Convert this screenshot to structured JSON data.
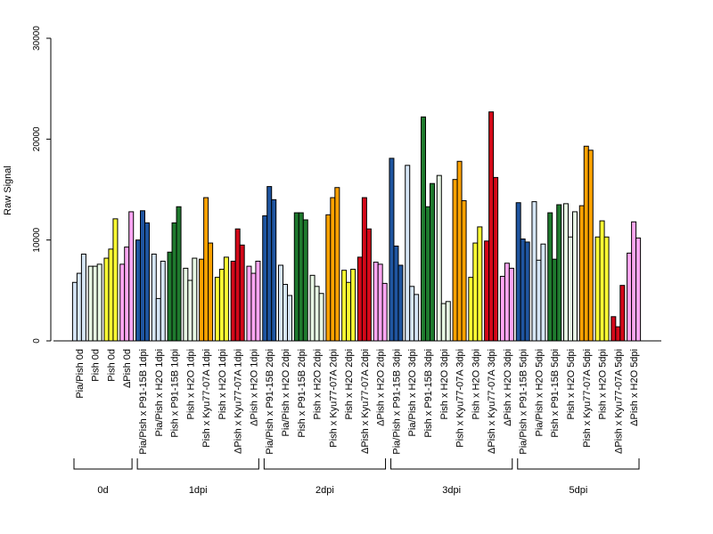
{
  "chart_data": {
    "type": "bar",
    "ylabel": "Raw Signal",
    "xlabel": "",
    "ylim": [
      0,
      30000
    ],
    "yticks": [
      0,
      10000,
      20000,
      30000
    ],
    "grid": false,
    "legend": "none",
    "group_names": [
      "0d",
      "1dpi",
      "2dpi",
      "3dpi",
      "5dpi"
    ],
    "categories": [
      {
        "label": "Pia/Pish 0d",
        "group": 0,
        "color": "#d6e6f6",
        "values": [
          5800,
          6700,
          8600
        ]
      },
      {
        "label": "Pish 0d",
        "group": 0,
        "color": "#e8f8e4",
        "values": [
          7400,
          7400,
          7600
        ]
      },
      {
        "label": "Pish 0d",
        "group": 0,
        "color": "#ffff33",
        "values": [
          8200,
          9100,
          12100
        ]
      },
      {
        "label": "ΔPish 0d",
        "group": 0,
        "color": "#ffa6f3",
        "values": [
          7600,
          9300,
          12800
        ]
      },
      {
        "label": "Pia/Pish x P91-15B 1dpi",
        "group": 1,
        "color": "#1f55a0",
        "values": [
          10000,
          12900,
          11700
        ]
      },
      {
        "label": "Pia/Pish x H2O 1dpi",
        "group": 1,
        "color": "#d6e6f6",
        "values": [
          8600,
          4200,
          7900
        ]
      },
      {
        "label": "Pish x P91-15B 1dpi",
        "group": 1,
        "color": "#1f7a2e",
        "values": [
          8800,
          11700,
          13300
        ]
      },
      {
        "label": "Pish x H2O 1dpi",
        "group": 1,
        "color": "#e8f8e4",
        "values": [
          7200,
          6000,
          8200
        ]
      },
      {
        "label": "Pish x Kyu77-07A 1dpi",
        "group": 1,
        "color": "#ffa200",
        "values": [
          8100,
          14200,
          9700
        ]
      },
      {
        "label": "Pish x H2O 1dpi",
        "group": 1,
        "color": "#ffff33",
        "values": [
          6300,
          7100,
          8300
        ]
      },
      {
        "label": "ΔPish x Kyu77-07A 1dpi",
        "group": 1,
        "color": "#d40819",
        "values": [
          7900,
          11100,
          9500
        ]
      },
      {
        "label": "ΔPish x H2O 1dpi",
        "group": 1,
        "color": "#ffa6f3",
        "values": [
          7400,
          6700,
          7900
        ]
      },
      {
        "label": "Pia/Pish x P91-15B 2dpi",
        "group": 2,
        "color": "#1f55a0",
        "values": [
          12400,
          15300,
          14000
        ]
      },
      {
        "label": "Pia/Pish x H2O 2dpi",
        "group": 2,
        "color": "#d6e6f6",
        "values": [
          7500,
          5600,
          4500
        ]
      },
      {
        "label": "Pish x P91-15B 2dpi",
        "group": 2,
        "color": "#1f7a2e",
        "values": [
          12700,
          12700,
          12000
        ]
      },
      {
        "label": "Pish x H2O 2dpi",
        "group": 2,
        "color": "#e8f8e4",
        "values": [
          6500,
          5400,
          4700
        ]
      },
      {
        "label": "Pish x Kyu77-07A 2dpi",
        "group": 2,
        "color": "#ffa200",
        "values": [
          12500,
          14200,
          15200
        ]
      },
      {
        "label": "Pish x H2O 2dpi",
        "group": 2,
        "color": "#ffff33",
        "values": [
          7000,
          5800,
          7100
        ]
      },
      {
        "label": "ΔPish x Kyu77-07A 2dpi",
        "group": 2,
        "color": "#d40819",
        "values": [
          8300,
          14200,
          11100
        ]
      },
      {
        "label": "ΔPish x H2O 2dpi",
        "group": 2,
        "color": "#ffa6f3",
        "values": [
          7800,
          7600,
          5700
        ]
      },
      {
        "label": "Pia/Pish x P91-15B 3dpi",
        "group": 3,
        "color": "#1f55a0",
        "values": [
          18100,
          9400,
          7500
        ]
      },
      {
        "label": "Pia/Pish x H2O 3dpi",
        "group": 3,
        "color": "#d6e6f6",
        "values": [
          17400,
          5400,
          4600
        ]
      },
      {
        "label": "Pish x P91-15B 3dpi",
        "group": 3,
        "color": "#1f7a2e",
        "values": [
          22200,
          13300,
          15600
        ]
      },
      {
        "label": "Pish x H2O 3dpi",
        "group": 3,
        "color": "#e8f8e4",
        "values": [
          16400,
          3700,
          3900
        ]
      },
      {
        "label": "Pish x Kyu77-07A 3dpi",
        "group": 3,
        "color": "#ffa200",
        "values": [
          16000,
          17800,
          13900
        ]
      },
      {
        "label": "Pish x H2O 3dpi",
        "group": 3,
        "color": "#ffff33",
        "values": [
          6300,
          9700,
          11300
        ]
      },
      {
        "label": "ΔPish x Kyu77-07A 3dpi",
        "group": 3,
        "color": "#d40819",
        "values": [
          9900,
          22700,
          16200
        ]
      },
      {
        "label": "ΔPish x H2O 3dpi",
        "group": 3,
        "color": "#ffa6f3",
        "values": [
          6400,
          7700,
          7200
        ]
      },
      {
        "label": "Pia/Pish x P91-15B 5dpi",
        "group": 4,
        "color": "#1f55a0",
        "values": [
          13700,
          10100,
          9800
        ]
      },
      {
        "label": "Pia/Pish x H2O 5dpi",
        "group": 4,
        "color": "#d6e6f6",
        "values": [
          13800,
          8000,
          9600
        ]
      },
      {
        "label": "Pish x P91-15B 5dpi",
        "group": 4,
        "color": "#1f7a2e",
        "values": [
          12700,
          8100,
          13500
        ]
      },
      {
        "label": "Pish x H2O 5dpi",
        "group": 4,
        "color": "#e8f8e4",
        "values": [
          13600,
          10300,
          12800
        ]
      },
      {
        "label": "Pish x Kyu77-07A 5dpi",
        "group": 4,
        "color": "#ffa200",
        "values": [
          13400,
          19300,
          18900
        ]
      },
      {
        "label": "Pish x H2O 5dpi",
        "group": 4,
        "color": "#ffff33",
        "values": [
          10300,
          11900,
          10300
        ]
      },
      {
        "label": "ΔPish x Kyu77-07A 5dpi",
        "group": 4,
        "color": "#d40819",
        "values": [
          2400,
          1400,
          5500
        ]
      },
      {
        "label": "ΔPish x H2O 5dpi",
        "group": 4,
        "color": "#ffa6f3",
        "values": [
          8700,
          11800,
          10200
        ]
      }
    ]
  }
}
